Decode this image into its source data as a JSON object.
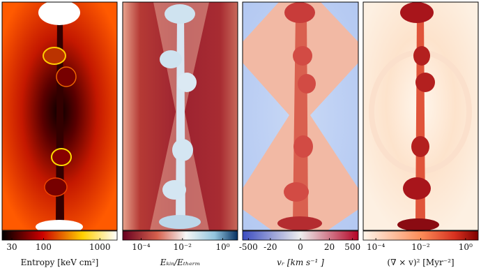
{
  "panels": [
    {
      "label": "Entropy [keV cm²]",
      "ticks": [
        "30",
        "100",
        "1000"
      ]
    },
    {
      "label": "Eₖᵢₙ/Eₜₕₑᵣₘ",
      "ticks": [
        "10⁻⁴",
        "10⁻²",
        "10⁰"
      ]
    },
    {
      "label": "vᵣ [km s⁻¹ ]",
      "ticks": [
        "-500",
        "-20",
        "0",
        "20",
        "500"
      ]
    },
    {
      "label": "(∇ × v)² [Myr⁻²]",
      "ticks": [
        "10⁻⁴",
        "10⁻²",
        "10⁰"
      ]
    }
  ]
}
